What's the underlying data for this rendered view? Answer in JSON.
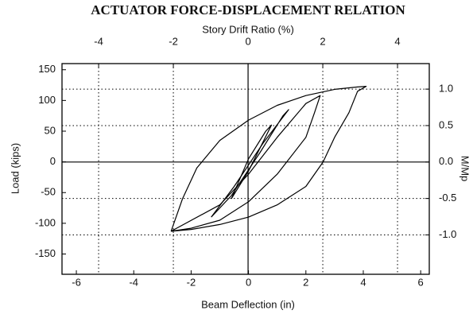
{
  "chart_data": {
    "type": "line",
    "title": "ACTUATOR FORCE-DISPLACEMENT RELATION",
    "x_label": "Beam Deflection (in)",
    "y_label": "Load (kips)",
    "x2_label": "Story Drift Ratio (%)",
    "y2_label": "M/Mp",
    "xlim": [
      -6.5,
      6.3
    ],
    "xticks": [
      -6,
      -4,
      -2,
      0,
      2,
      4,
      6
    ],
    "ylim": [
      -183,
      160
    ],
    "yticks": [
      -150,
      -100,
      -50,
      0,
      50,
      100,
      150
    ],
    "x2lim": [
      -4.98,
      4.85
    ],
    "x2ticks": [
      -4,
      -2,
      0,
      2,
      4
    ],
    "y2lim": [
      -1.54,
      1.35
    ],
    "y2ticks": [
      {
        "value": -1,
        "label": "-1.0"
      },
      {
        "value": -0.5,
        "label": "-0.5"
      },
      {
        "value": 0,
        "label": "0.0"
      },
      {
        "value": 0.5,
        "label": "0.5"
      },
      {
        "value": 1,
        "label": "1.0"
      }
    ],
    "grid": true,
    "series": [
      {
        "color": "#000000",
        "x": [
          -2.7,
          -2.3,
          -1.8,
          -1,
          0,
          1,
          2,
          3,
          3.8,
          4.1,
          3.8,
          3.5,
          3,
          2.6,
          2,
          1,
          0,
          -1,
          -2,
          -2.7
        ],
        "values": [
          -113,
          -60,
          -10,
          35,
          68,
          92,
          108,
          118,
          122,
          123,
          115,
          80,
          40,
          0,
          -40,
          -70,
          -90,
          -102,
          -110,
          -113
        ]
      },
      {
        "color": "#000000",
        "x": [
          -2.7,
          -1,
          0,
          1,
          2,
          2.5,
          2.3,
          2,
          1,
          0,
          -1,
          -2,
          -2.7
        ],
        "values": [
          -113,
          -70,
          -20,
          40,
          95,
          108,
          80,
          40,
          -20,
          -65,
          -95,
          -108,
          -113
        ]
      },
      {
        "color": "#000000",
        "x": [
          -1.3,
          -0.5,
          0.5,
          1.4,
          1.2,
          0.4,
          -0.6,
          -1.3
        ],
        "values": [
          -90,
          -40,
          30,
          85,
          75,
          15,
          -55,
          -90
        ]
      },
      {
        "color": "#000000",
        "x": [
          -0.6,
          0,
          0.8,
          0.6,
          0,
          -0.6
        ],
        "values": [
          -60,
          -15,
          60,
          50,
          5,
          -60
        ]
      }
    ]
  }
}
